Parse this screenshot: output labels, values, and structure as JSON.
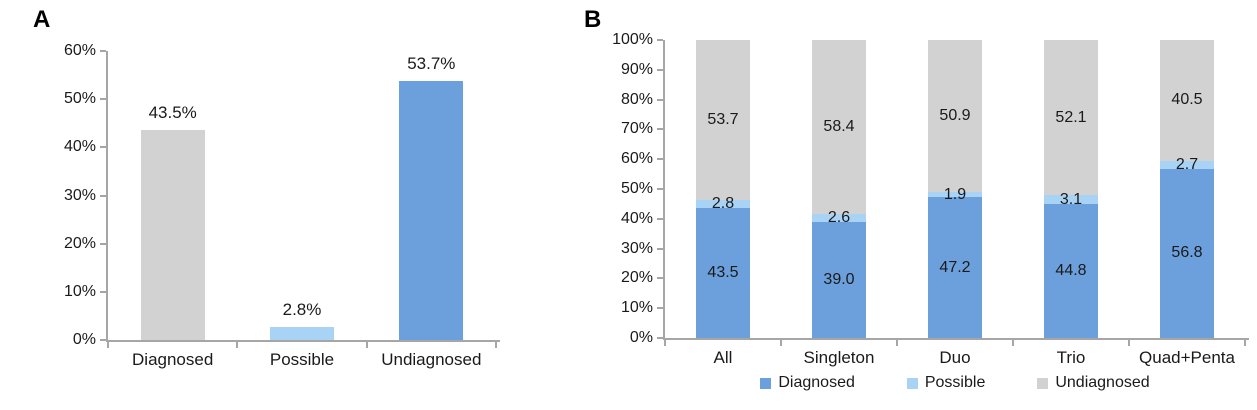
{
  "figure": {
    "background": "#FFFFFF",
    "description": "Two-panel bar chart figure"
  },
  "panels": [
    {
      "label": "A"
    },
    {
      "label": "B"
    }
  ],
  "colors": {
    "diagnosed_blue": "#6CA0DC",
    "possible_light_blue": "#A9D3F5",
    "undiagnosed_gray": "#D2D2D2",
    "axis_gray": "#A6A6A6",
    "text": "#1A1A1A"
  },
  "chart_data": [
    {
      "id": "A",
      "type": "bar",
      "stacked": false,
      "title": "",
      "xlabel": "",
      "ylabel": "",
      "categories": [
        "Diagnosed",
        "Possible",
        "Undiagnosed"
      ],
      "values": [
        43.5,
        2.8,
        53.7
      ],
      "data_labels": [
        "43.5%",
        "2.8%",
        "53.7%"
      ],
      "bar_colors": [
        "#D2D2D2",
        "#A9D3F5",
        "#6CA0DC"
      ],
      "ylim": [
        0,
        60
      ],
      "ytick_step": 10,
      "ytick_suffix": "%",
      "grid": false,
      "legend_position": "none"
    },
    {
      "id": "B",
      "type": "bar",
      "stacked": true,
      "title": "",
      "xlabel": "",
      "ylabel": "",
      "categories": [
        "All",
        "Singleton",
        "Duo",
        "Trio",
        "Quad+Penta"
      ],
      "series": [
        {
          "name": "Diagnosed",
          "color": "#6CA0DC",
          "values": [
            43.5,
            39.0,
            47.2,
            44.8,
            56.8
          ],
          "data_labels": [
            "43.5",
            "39.0",
            "47.2",
            "44.8",
            "56.8"
          ]
        },
        {
          "name": "Possible",
          "color": "#A9D3F5",
          "values": [
            2.8,
            2.6,
            1.9,
            3.1,
            2.7
          ],
          "data_labels": [
            "2.8",
            "2.6",
            "1.9",
            "3.1",
            "2.7"
          ]
        },
        {
          "name": "Undiagnosed",
          "color": "#D2D2D2",
          "values": [
            53.7,
            58.4,
            50.9,
            52.1,
            40.5
          ],
          "data_labels": [
            "53.7",
            "58.4",
            "50.9",
            "52.1",
            "40.5"
          ]
        }
      ],
      "ylim": [
        0,
        100
      ],
      "ytick_step": 10,
      "ytick_suffix": "%",
      "grid": false,
      "legend_position": "bottom"
    }
  ]
}
